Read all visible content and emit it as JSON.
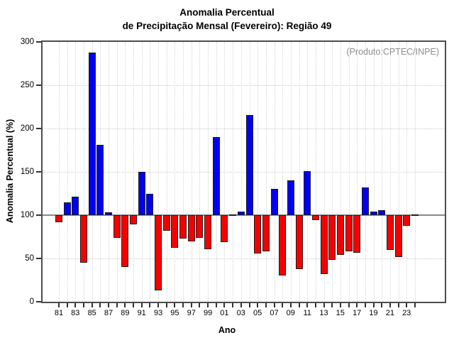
{
  "title": {
    "line1": "Anomalia Percentual",
    "line2": "de Precipitação Mensal (Fevereiro): Região 49"
  },
  "annotation": "(Produto:CPTEC/INPE)",
  "chart_data": {
    "type": "bar",
    "title": "Anomalia Percentual de Precipitação Mensal (Fevereiro): Região 49",
    "xlabel": "Ano",
    "ylabel": "Anomalia Percentual (%)",
    "ylim": [
      0,
      300
    ],
    "yticks": [
      0,
      50,
      100,
      150,
      200,
      250,
      300
    ],
    "baseline": 100,
    "grid": true,
    "legend_position": "none",
    "colors": {
      "above_baseline": "#0000f2",
      "below_baseline": "#f50000",
      "baseline_line": "#8a8a8a"
    },
    "categories": [
      "81",
      "82",
      "83",
      "84",
      "85",
      "86",
      "87",
      "88",
      "89",
      "90",
      "91",
      "92",
      "93",
      "94",
      "95",
      "96",
      "97",
      "98",
      "99",
      "00",
      "01",
      "02",
      "03",
      "04",
      "05",
      "06",
      "07",
      "08",
      "09",
      "10",
      "11",
      "12",
      "13",
      "14",
      "15",
      "16",
      "17",
      "18",
      "19",
      "20",
      "21",
      "22",
      "23",
      "24"
    ],
    "x_tick_labels": [
      "81",
      "83",
      "85",
      "87",
      "89",
      "91",
      "93",
      "95",
      "97",
      "99",
      "01",
      "03",
      "05",
      "07",
      "09",
      "11",
      "13",
      "15",
      "17",
      "19",
      "21",
      "23"
    ],
    "values": [
      92,
      115,
      121,
      45,
      288,
      181,
      103,
      74,
      40,
      89,
      150,
      125,
      13,
      82,
      62,
      73,
      70,
      74,
      61,
      190,
      69,
      101,
      104,
      216,
      56,
      58,
      130,
      30,
      140,
      38,
      151,
      94,
      32,
      48,
      54,
      58,
      57,
      132,
      104,
      106,
      60,
      52,
      88,
      101
    ]
  }
}
